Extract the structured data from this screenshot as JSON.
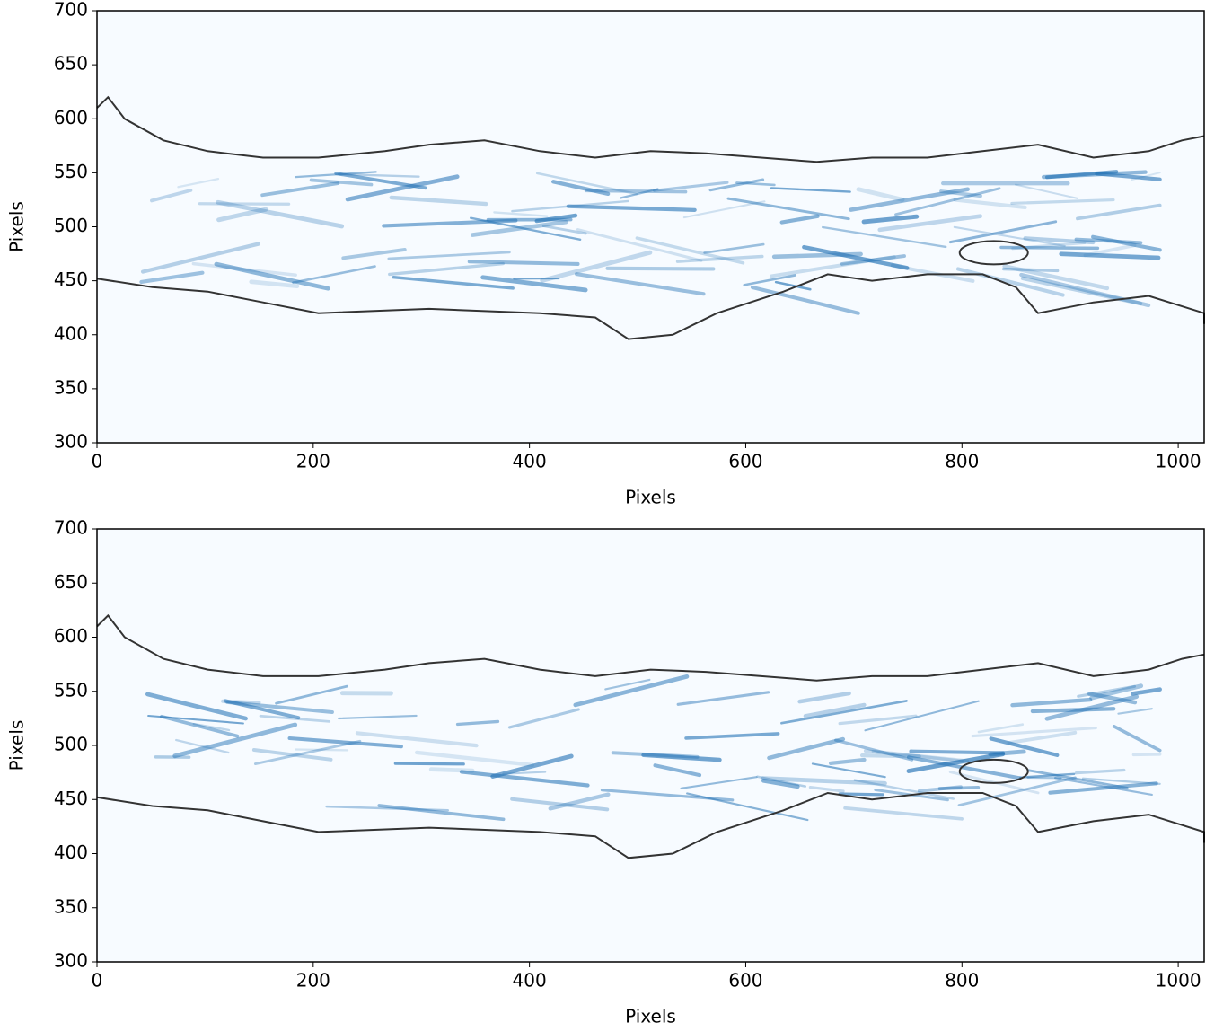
{
  "chart_data": [
    {
      "type": "image",
      "xlabel": "Pixels",
      "ylabel": "Pixels",
      "background": "#f7fbff",
      "xlim": [
        0,
        1024
      ],
      "ylim": [
        300,
        700
      ],
      "xticks": [
        0,
        200,
        400,
        600,
        800,
        1000
      ],
      "yticks": [
        300,
        350,
        400,
        450,
        500,
        550,
        600,
        650,
        700
      ]
    },
    {
      "type": "image",
      "xlabel": "Pixels",
      "ylabel": "Pixels",
      "background": "#f7fbff",
      "xlim": [
        0,
        1024
      ],
      "ylim": [
        300,
        700
      ],
      "xticks": [
        0,
        200,
        400,
        600,
        800,
        1000
      ],
      "yticks": [
        300,
        350,
        400,
        450,
        500,
        550,
        600,
        650,
        700
      ]
    }
  ]
}
